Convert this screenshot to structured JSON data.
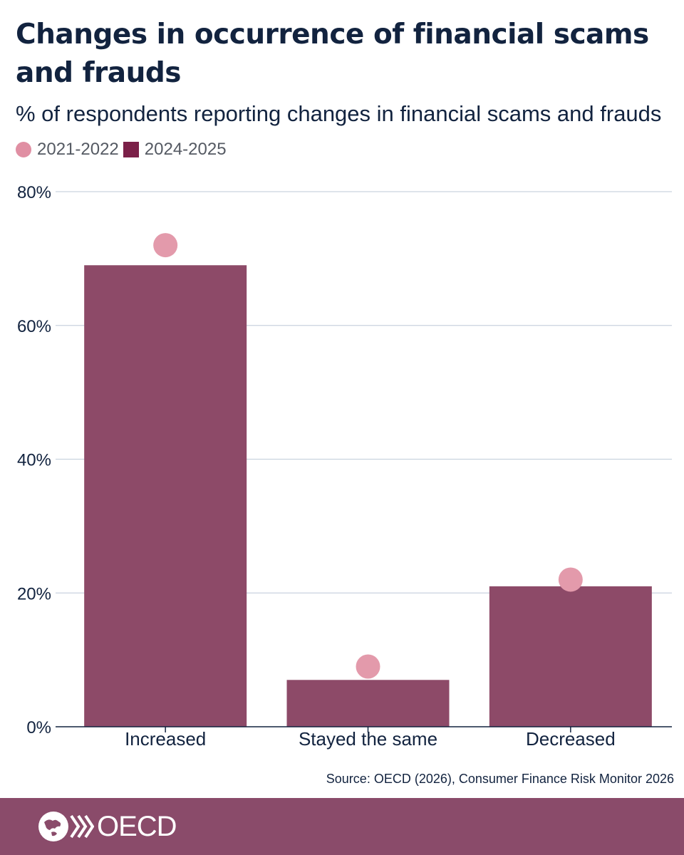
{
  "header": {
    "title": "Changes in occurrence of financial scams and frauds",
    "subtitle": "% of respondents reporting changes in financial scams and frauds"
  },
  "legend": {
    "items": [
      {
        "label": "2021-2022",
        "shape": "circle",
        "color": "#e08fa3"
      },
      {
        "label": "2024-2025",
        "shape": "square",
        "color": "#7b2048"
      }
    ]
  },
  "chart_data": {
    "type": "bar",
    "categories": [
      "Increased",
      "Stayed the same",
      "Decreased"
    ],
    "series": [
      {
        "name": "2024-2025",
        "mark": "bar",
        "color": "#8d4a68",
        "values": [
          69,
          7,
          21
        ]
      },
      {
        "name": "2021-2022",
        "mark": "dot",
        "color": "#e39aab",
        "values": [
          72,
          9,
          22
        ]
      }
    ],
    "ylim": [
      0,
      80
    ],
    "yticks": [
      0,
      20,
      40,
      60,
      80
    ],
    "ytick_labels": [
      "0%",
      "20%",
      "40%",
      "60%",
      "80%"
    ],
    "grid": true,
    "legend_position": "top-left",
    "xlabel": "",
    "ylabel": ""
  },
  "footer": {
    "source": "Source: OECD (2026), Consumer Finance Risk Monitor 2026",
    "logo_text": "OECD",
    "background": "#8a4b6a"
  }
}
